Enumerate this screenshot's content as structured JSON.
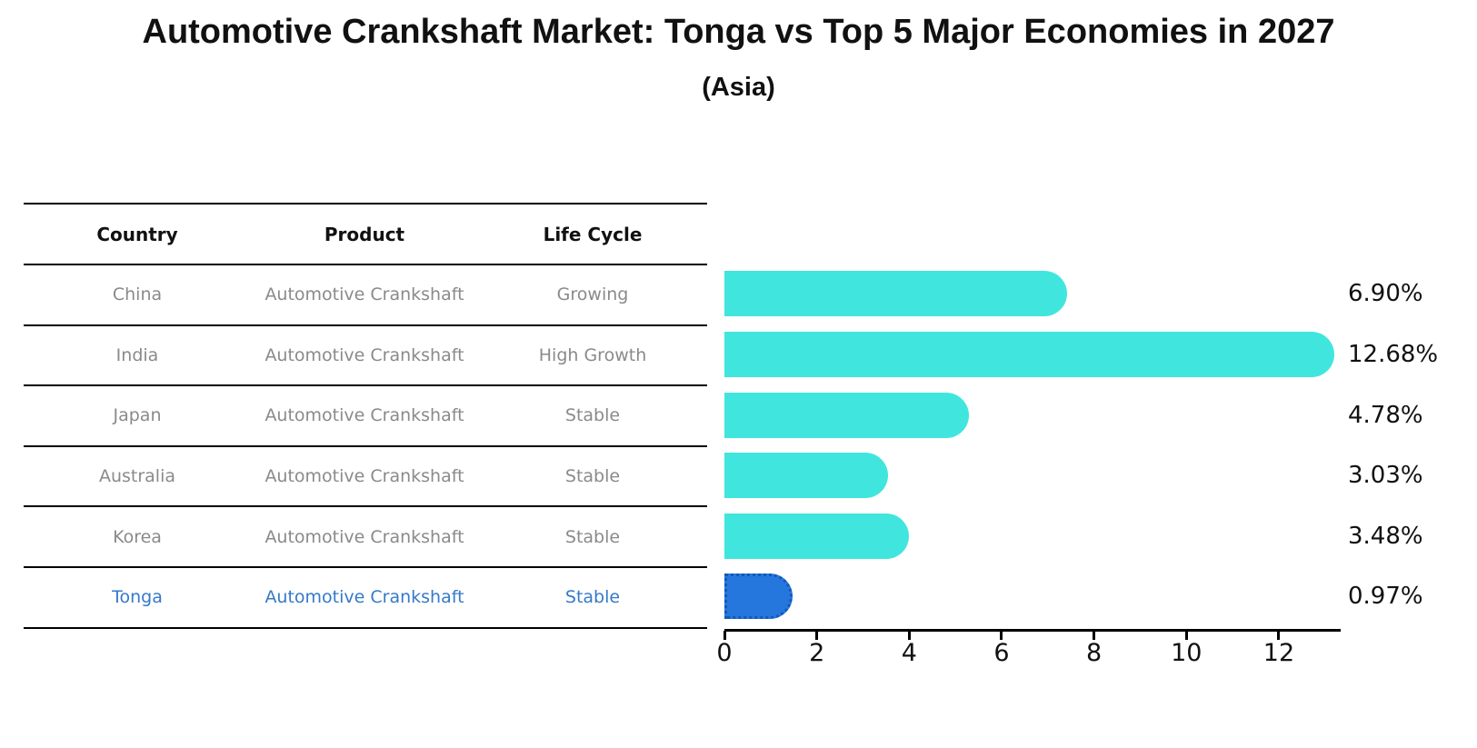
{
  "title": "Automotive Crankshaft Market: Tonga vs Top 5 Major Economies in 2027",
  "subtitle": "(Asia)",
  "table": {
    "headers": [
      "Country",
      "Product",
      "Life Cycle"
    ],
    "rows": [
      {
        "country": "China",
        "product": "Automotive Crankshaft",
        "life_cycle": "Growing",
        "highlight": false
      },
      {
        "country": "India",
        "product": "Automotive Crankshaft",
        "life_cycle": "High Growth",
        "highlight": false
      },
      {
        "country": "Japan",
        "product": "Automotive Crankshaft",
        "life_cycle": "Stable",
        "highlight": false
      },
      {
        "country": "Australia",
        "product": "Automotive Crankshaft",
        "life_cycle": "Stable",
        "highlight": false
      },
      {
        "country": "Korea",
        "product": "Automotive Crankshaft",
        "life_cycle": "Stable",
        "highlight": false
      },
      {
        "country": "Tonga",
        "product": "Automotive Crankshaft",
        "life_cycle": "Stable",
        "highlight": true
      }
    ]
  },
  "chart_data": {
    "type": "bar",
    "orientation": "horizontal",
    "title": "Automotive Crankshaft Market: Tonga vs Top 5 Major Economies in 2027 (Asia)",
    "categories": [
      "China",
      "India",
      "Japan",
      "Australia",
      "Korea",
      "Tonga"
    ],
    "values": [
      6.9,
      12.68,
      4.78,
      3.03,
      3.48,
      0.97
    ],
    "value_labels": [
      "6.90%",
      "12.68%",
      "4.78%",
      "3.03%",
      "3.48%",
      "0.97%"
    ],
    "highlight_index": 5,
    "xlim": [
      0,
      13.3
    ],
    "xticks": [
      0,
      2,
      4,
      6,
      8,
      10,
      12
    ],
    "xtick_labels": [
      "0",
      "2",
      "4",
      "6",
      "8",
      "10",
      "12"
    ],
    "grid": false,
    "legend": false,
    "bar_color": "#40e6dd",
    "highlight_bar_color": "#2577de",
    "highlight_text_color": "#3579c8",
    "text_color": "#8a8a8a"
  }
}
